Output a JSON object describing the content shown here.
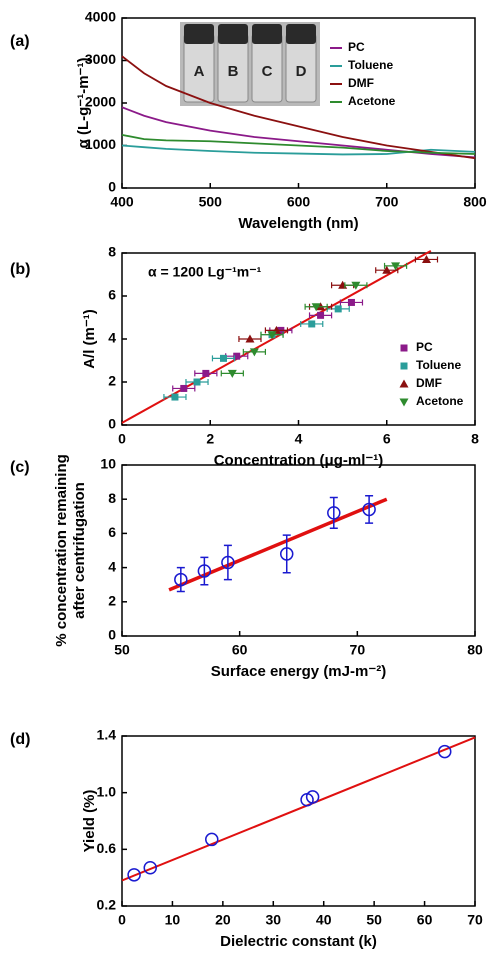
{
  "chart_data": [
    {
      "type": "line",
      "panel_label": "(a)",
      "xlabel": "Wavelength (nm)",
      "ylabel": "α (L-g⁻¹-m⁻¹)",
      "xlim": [
        400,
        800
      ],
      "xticks": [
        400,
        500,
        600,
        700,
        800
      ],
      "ylim": [
        0,
        4000
      ],
      "yticks": [
        0,
        1000,
        2000,
        3000,
        4000
      ],
      "inset_labels": [
        "A",
        "B",
        "C",
        "D"
      ],
      "x": [
        400,
        425,
        450,
        500,
        550,
        600,
        650,
        700,
        750,
        800
      ],
      "series": [
        {
          "name": "PC",
          "color": "#8b1a89",
          "values": [
            1900,
            1700,
            1550,
            1350,
            1200,
            1100,
            1000,
            900,
            800,
            720
          ]
        },
        {
          "name": "Toluene",
          "color": "#2a9d9a",
          "values": [
            1000,
            960,
            920,
            870,
            830,
            810,
            790,
            800,
            900,
            850
          ]
        },
        {
          "name": "DMF",
          "color": "#8b1010",
          "values": [
            3100,
            2700,
            2400,
            2000,
            1700,
            1450,
            1200,
            1000,
            850,
            700
          ]
        },
        {
          "name": "Acetone",
          "color": "#2e8b2e",
          "values": [
            1250,
            1150,
            1120,
            1100,
            1050,
            1000,
            950,
            870,
            830,
            800
          ]
        }
      ],
      "legend": "upper right"
    },
    {
      "type": "scatter",
      "panel_label": "(b)",
      "annotation": "α = 1200 Lg⁻¹m⁻¹",
      "xlabel": "Concentration (μg-ml⁻¹)",
      "ylabel": "A/l (m⁻¹)",
      "xlim": [
        0,
        8
      ],
      "xticks": [
        0,
        2,
        4,
        6,
        8
      ],
      "ylim": [
        0,
        8
      ],
      "yticks": [
        0,
        2,
        4,
        6,
        8
      ],
      "fit": {
        "color": "#e01010",
        "x": [
          0,
          7
        ],
        "y": [
          0.1,
          8.1
        ]
      },
      "series": [
        {
          "name": "PC",
          "color": "#8b1a89",
          "marker": "square",
          "x": [
            1.4,
            1.9,
            2.6,
            3.6,
            4.5,
            5.2
          ],
          "values": [
            1.7,
            2.4,
            3.2,
            4.4,
            5.1,
            5.7
          ],
          "x_errors": [
            0.25,
            0.25,
            0.25,
            0.25,
            0.25,
            0.25
          ]
        },
        {
          "name": "Toluene",
          "color": "#2a9d9a",
          "marker": "square",
          "x": [
            1.2,
            1.7,
            2.3,
            3.4,
            4.3,
            4.9
          ],
          "values": [
            1.3,
            2.0,
            3.1,
            4.2,
            4.7,
            5.4
          ],
          "x_errors": [
            0.25,
            0.25,
            0.25,
            0.25,
            0.25,
            0.25
          ]
        },
        {
          "name": "DMF",
          "color": "#8b1010",
          "marker": "triangle-up",
          "x": [
            2.9,
            3.5,
            4.5,
            5.0,
            6.0,
            6.9
          ],
          "values": [
            4.0,
            4.4,
            5.5,
            6.5,
            7.2,
            7.7
          ],
          "x_errors": [
            0.25,
            0.25,
            0.25,
            0.25,
            0.25,
            0.25
          ]
        },
        {
          "name": "Acetone",
          "color": "#2e8b2e",
          "marker": "triangle-down",
          "x": [
            2.5,
            3.0,
            3.4,
            4.4,
            5.3,
            6.2
          ],
          "values": [
            2.4,
            3.4,
            4.2,
            5.5,
            6.5,
            7.4
          ],
          "x_errors": [
            0.25,
            0.25,
            0.25,
            0.25,
            0.25,
            0.25
          ]
        }
      ],
      "legend": "lower right"
    },
    {
      "type": "scatter",
      "panel_label": "(c)",
      "xlabel": "Surface energy (mJ-m⁻²)",
      "ylabel": [
        "% concentration remaining",
        "after centrifugation"
      ],
      "xlim": [
        50,
        80
      ],
      "xticks": [
        50,
        60,
        70,
        80
      ],
      "ylim": [
        0,
        10
      ],
      "yticks": [
        0,
        2,
        4,
        6,
        8,
        10
      ],
      "fit": {
        "color": "#e01010",
        "x": [
          54,
          72.5
        ],
        "y": [
          2.7,
          8.0
        ]
      },
      "series": [
        {
          "color": "#1a1ad0",
          "marker": "circle-open",
          "x": [
            55,
            57,
            59,
            64,
            68,
            71
          ],
          "values": [
            3.3,
            3.8,
            4.3,
            4.8,
            7.2,
            7.4
          ],
          "errors": [
            0.7,
            0.8,
            1.0,
            1.1,
            0.9,
            0.8
          ]
        }
      ]
    },
    {
      "type": "scatter",
      "panel_label": "(d)",
      "xlabel": "Dielectric constant (k)",
      "ylabel": "Yield (%)",
      "xlim": [
        0,
        70
      ],
      "xticks": [
        0,
        10,
        20,
        30,
        40,
        50,
        60,
        70
      ],
      "ylim": [
        0.2,
        1.4
      ],
      "yticks": [
        0.2,
        0.6,
        {
          "value": 1,
          "label": "1.0"
        },
        1.4
      ],
      "fit": {
        "color": "#e01010",
        "x": [
          0,
          70
        ],
        "y": [
          0.38,
          1.39
        ]
      },
      "series": [
        {
          "color": "#1a1ad0",
          "marker": "circle-open",
          "x": [
            2.4,
            5.6,
            17.8,
            36.7,
            37.8,
            64
          ],
          "values": [
            0.42,
            0.47,
            0.67,
            0.95,
            0.97,
            1.29
          ]
        }
      ]
    }
  ]
}
